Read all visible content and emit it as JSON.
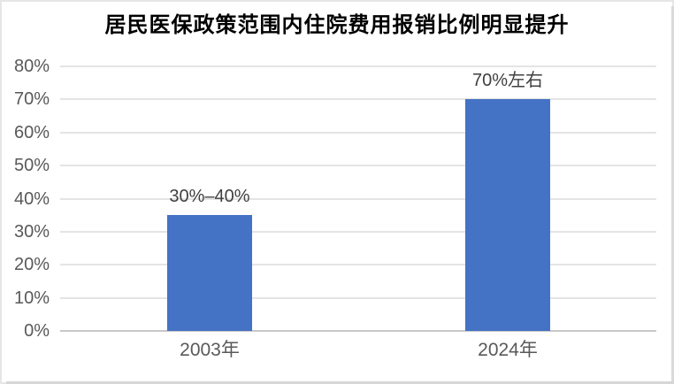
{
  "chart_data": {
    "type": "bar",
    "title": "居民医保政策范围内住院费用报销比例明显提升",
    "categories": [
      "2003年",
      "2024年"
    ],
    "values": [
      35,
      70
    ],
    "data_labels": [
      "30%–40%",
      "70%左右"
    ],
    "xlabel": "",
    "ylabel": "",
    "ylim": [
      0,
      80
    ],
    "yticks": [
      0,
      10,
      20,
      30,
      40,
      50,
      60,
      70,
      80
    ],
    "ytick_labels": [
      "0%",
      "10%",
      "20%",
      "30%",
      "40%",
      "50%",
      "60%",
      "70%",
      "80%"
    ],
    "legend_position": "none",
    "grid": true,
    "colors": {
      "bar": "#4472C4",
      "title_text": "#000000",
      "axis_text": "#595959",
      "data_label_text": "#404040",
      "gridline": "#e4e4e4",
      "baseline": "#c8c8c8",
      "background": "#ffffff"
    }
  }
}
